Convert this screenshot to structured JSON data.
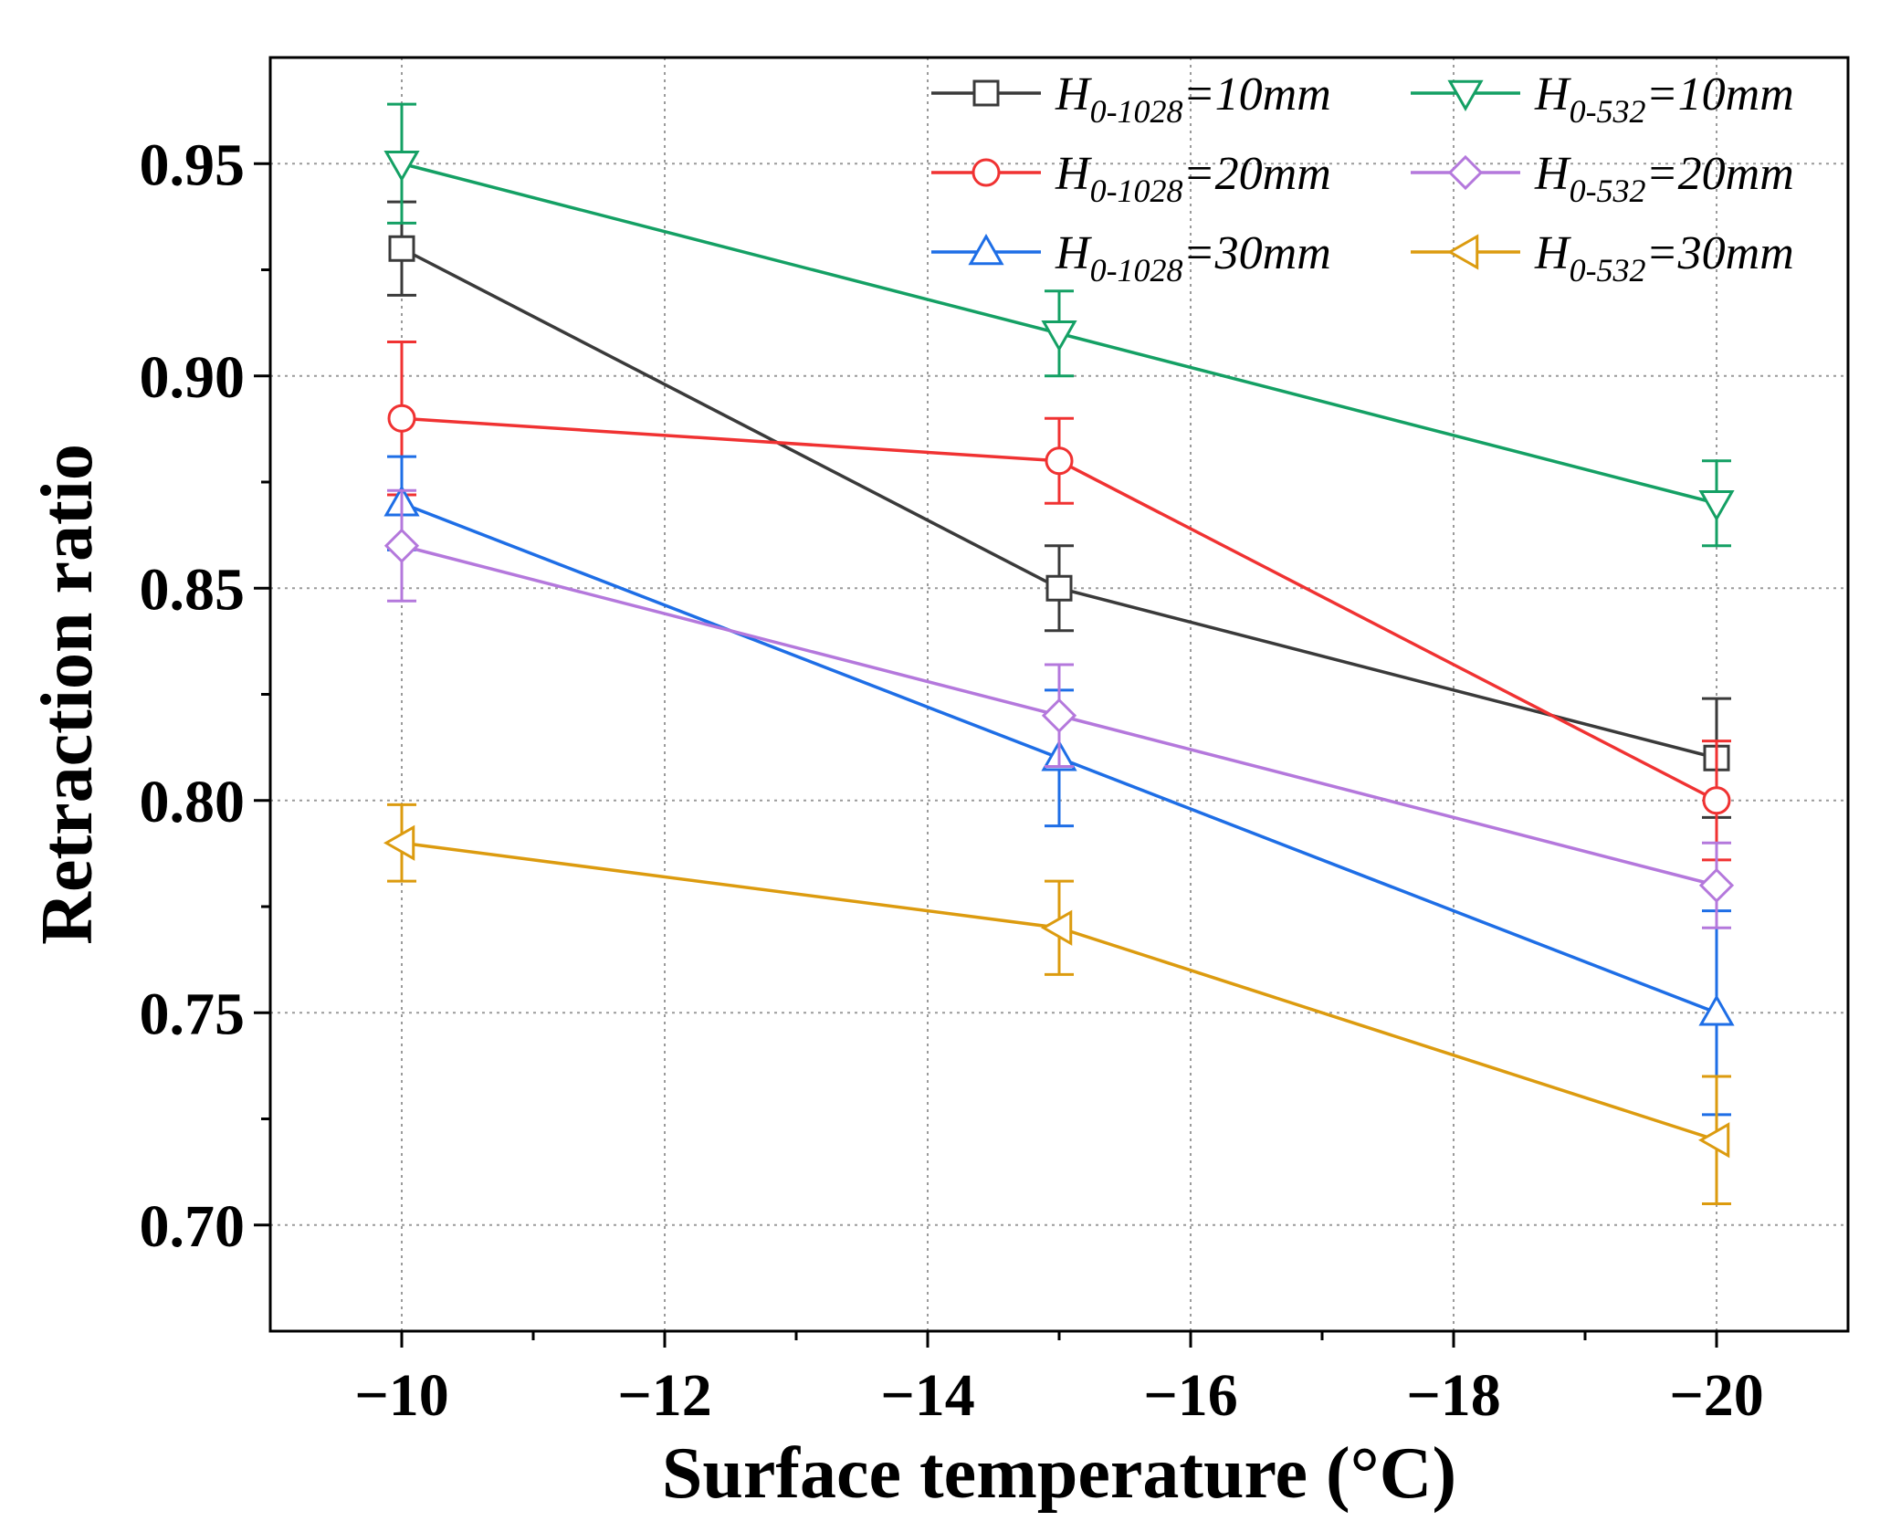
{
  "chart_data": {
    "type": "line",
    "title": "",
    "xlabel": "Surface temperature (°C)",
    "ylabel": "Retraction ratio",
    "xlim": [
      -9,
      -21
    ],
    "ylim": [
      0.675,
      0.975
    ],
    "x_ticks": [
      -10,
      -12,
      -14,
      -16,
      -18,
      -20
    ],
    "x_tick_labels": [
      "−10",
      "−12",
      "−14",
      "−16",
      "−18",
      "−20"
    ],
    "y_ticks": [
      0.7,
      0.75,
      0.8,
      0.85,
      0.9,
      0.95
    ],
    "y_tick_labels": [
      "0.70",
      "0.75",
      "0.80",
      "0.85",
      "0.90",
      "0.95"
    ],
    "grid": true,
    "legend_position": "top-right",
    "x": [
      -10,
      -15,
      -20
    ],
    "series": [
      {
        "name": "H0-1028=10mm",
        "label_main": "H",
        "label_sub": "0-1028",
        "label_rest": "=10mm",
        "color": "#3a3a3a",
        "marker": "square",
        "values": [
          0.93,
          0.85,
          0.81
        ],
        "errors": [
          0.011,
          0.01,
          0.014
        ]
      },
      {
        "name": "H0-1028=20mm",
        "label_main": "H",
        "label_sub": "0-1028",
        "label_rest": "=20mm",
        "color": "#f03232",
        "marker": "circle",
        "values": [
          0.89,
          0.88,
          0.8
        ],
        "errors": [
          0.018,
          0.01,
          0.014
        ]
      },
      {
        "name": "H0-1028=30mm",
        "label_main": "H",
        "label_sub": "0-1028",
        "label_rest": "=30mm",
        "color": "#1e6ee6",
        "marker": "triangle-up",
        "values": [
          0.87,
          0.81,
          0.75
        ],
        "errors": [
          0.011,
          0.016,
          0.024
        ]
      },
      {
        "name": "H0-532=10mm",
        "label_main": "H",
        "label_sub": "0-532",
        "label_rest": "=10mm",
        "color": "#14a064",
        "marker": "triangle-down",
        "values": [
          0.95,
          0.91,
          0.87
        ],
        "errors": [
          0.014,
          0.01,
          0.01
        ]
      },
      {
        "name": "H0-532=20mm",
        "label_main": "H",
        "label_sub": "0-532",
        "label_rest": "=20mm",
        "color": "#b478dc",
        "marker": "diamond",
        "values": [
          0.86,
          0.82,
          0.78
        ],
        "errors": [
          0.013,
          0.012,
          0.01
        ]
      },
      {
        "name": "H0-532=30mm",
        "label_main": "H",
        "label_sub": "0-532",
        "label_rest": "=30mm",
        "color": "#dc9b0f",
        "marker": "triangle-left",
        "values": [
          0.79,
          0.77,
          0.72
        ],
        "errors": [
          0.009,
          0.011,
          0.015
        ]
      }
    ]
  }
}
